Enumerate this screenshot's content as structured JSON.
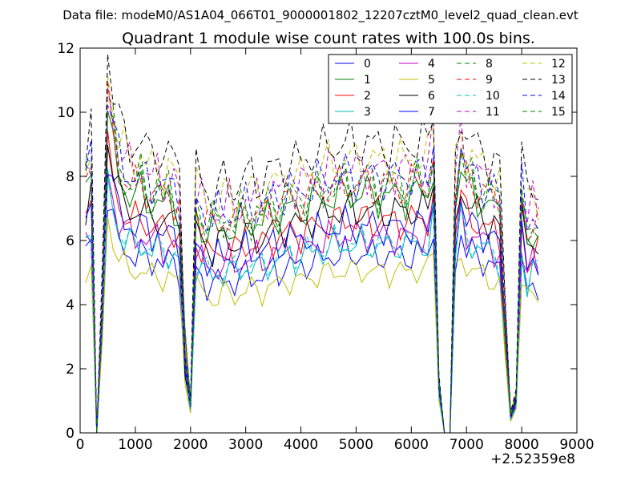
{
  "figure": {
    "suptitle": "Data file: modeM0/AS1A04_066T01_9000001802_12207cztM0_level2_quad_clean.evt"
  },
  "chart_data": {
    "type": "line",
    "title": "Quadrant 1 module wise count rates with 100.0s bins.",
    "xlabel": "",
    "ylabel": "",
    "xlim": [
      0,
      9000
    ],
    "ylim": [
      0,
      12
    ],
    "x_offset_label": "+2.52359e8",
    "xticks": [
      0,
      1000,
      2000,
      3000,
      4000,
      5000,
      6000,
      7000,
      8000,
      9000
    ],
    "yticks": [
      0,
      2,
      4,
      6,
      8,
      10,
      12
    ],
    "xtick_labels": [
      "0",
      "1000",
      "2000",
      "3000",
      "4000",
      "5000",
      "6000",
      "7000",
      "8000",
      "9000"
    ],
    "ytick_labels": [
      "0",
      "2",
      "4",
      "6",
      "8",
      "10",
      "12"
    ],
    "grid": false,
    "legend_position": "top-right",
    "legend_columns": 4,
    "x": [
      100,
      200,
      300,
      400,
      500,
      600,
      700,
      800,
      900,
      1000,
      1100,
      1200,
      1300,
      1400,
      1500,
      1600,
      1700,
      1800,
      1900,
      2000,
      2100,
      2200,
      2300,
      2400,
      2500,
      2600,
      2700,
      2800,
      2900,
      3000,
      3100,
      3200,
      3300,
      3400,
      3500,
      3600,
      3700,
      3800,
      3900,
      4000,
      4100,
      4200,
      4300,
      4400,
      4500,
      4600,
      4700,
      4800,
      4900,
      5000,
      5100,
      5200,
      5300,
      5400,
      5500,
      5600,
      5700,
      5800,
      5900,
      6000,
      6100,
      6200,
      6300,
      6400,
      6500,
      6600,
      6700,
      6800,
      6900,
      7000,
      7100,
      7200,
      7300,
      7400,
      7500,
      7600,
      7700,
      7800,
      7900,
      8000,
      8100,
      8200,
      8300
    ],
    "base_profile": [
      1,
      1.05,
      0,
      0.55,
      1.32,
      1.18,
      1.06,
      1.02,
      1.0,
      0.98,
      1.0,
      0.97,
      0.95,
      0.98,
      0.93,
      0.96,
      0.94,
      0.9,
      0.35,
      0.12,
      0.9,
      0.87,
      0.83,
      0.82,
      0.84,
      0.85,
      0.86,
      0.83,
      0.86,
      0.88,
      0.87,
      0.88,
      0.86,
      0.89,
      0.91,
      0.9,
      0.92,
      0.94,
      0.92,
      0.93,
      0.94,
      0.95,
      0.97,
      0.96,
      0.98,
      0.99,
      0.98,
      1.0,
      0.99,
      0.98,
      1.0,
      0.99,
      0.99,
      0.98,
      0.99,
      0.98,
      0.99,
      0.99,
      0.98,
      0.99,
      1.0,
      0.99,
      0.99,
      1.12,
      0.2,
      0.0,
      0.0,
      0.95,
      1.12,
      1.0,
      1.0,
      0.98,
      0.96,
      0.95,
      0.93,
      0.9,
      0.45,
      0.07,
      0.15,
      0.95,
      0.8,
      0.85,
      0.82
    ],
    "series": [
      {
        "name": "0",
        "color": "#0000ff",
        "dash": "solid",
        "level": 5.6
      },
      {
        "name": "1",
        "color": "#008000",
        "dash": "solid",
        "level": 7.5
      },
      {
        "name": "2",
        "color": "#ff0000",
        "dash": "solid",
        "level": 6.7
      },
      {
        "name": "3",
        "color": "#00bfbf",
        "dash": "solid",
        "level": 5.9
      },
      {
        "name": "4",
        "color": "#bf00bf",
        "dash": "solid",
        "level": 6.2
      },
      {
        "name": "5",
        "color": "#bfbf00",
        "dash": "solid",
        "level": 5.1
      },
      {
        "name": "6",
        "color": "#000000",
        "dash": "solid",
        "level": 7.0
      },
      {
        "name": "7",
        "color": "#0000ff",
        "dash": "solid",
        "level": 6.5
      },
      {
        "name": "8",
        "color": "#008000",
        "dash": "dashed",
        "level": 8.0
      },
      {
        "name": "9",
        "color": "#ff0000",
        "dash": "dashed",
        "level": 7.8
      },
      {
        "name": "10",
        "color": "#00bfbf",
        "dash": "dashed",
        "level": 6.0
      },
      {
        "name": "11",
        "color": "#bf00bf",
        "dash": "dashed",
        "level": 8.3
      },
      {
        "name": "12",
        "color": "#bfbf00",
        "dash": "dashed",
        "level": 8.6
      },
      {
        "name": "13",
        "color": "#000000",
        "dash": "dashed",
        "level": 9.1
      },
      {
        "name": "14",
        "color": "#0000ff",
        "dash": "dashed",
        "level": 8.1
      },
      {
        "name": "15",
        "color": "#008000",
        "dash": "dashed",
        "level": 7.7
      }
    ]
  }
}
